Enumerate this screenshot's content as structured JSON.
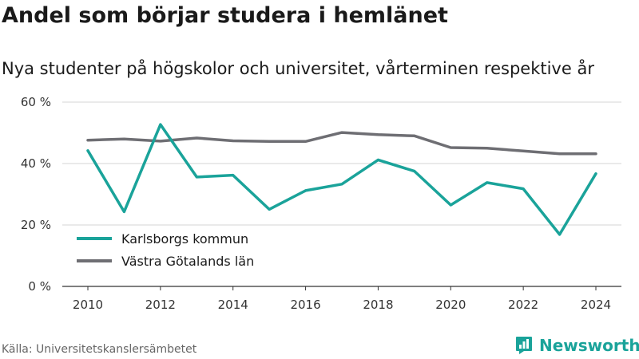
{
  "title": "Andel som börjar studera i hemlänet",
  "subtitle": "Nya studenter på högskolor och universitet, vårterminen respektive år",
  "source": "Källa: Universitetskanslersämbetet",
  "brand": {
    "name": "Newsworthy",
    "icon": "newsworthy-logo-icon",
    "color": "#1aa39a"
  },
  "chart_data": {
    "type": "line",
    "x": [
      2010,
      2011,
      2012,
      2013,
      2014,
      2015,
      2016,
      2017,
      2018,
      2019,
      2020,
      2021,
      2022,
      2023,
      2024
    ],
    "series": [
      {
        "name": "Karlsborgs kommun",
        "color": "#1aa39a",
        "values": [
          44.2,
          24.3,
          52.7,
          35.6,
          36.2,
          25.1,
          31.2,
          33.3,
          41.2,
          37.5,
          26.5,
          33.8,
          31.8,
          16.9,
          36.7
        ]
      },
      {
        "name": "Västra Götalands län",
        "color": "#6e6e73",
        "values": [
          47.6,
          48.0,
          47.3,
          48.3,
          47.4,
          47.2,
          47.2,
          50.1,
          49.4,
          49.0,
          45.2,
          45.0,
          44.1,
          43.2,
          43.2
        ]
      }
    ],
    "xticks": [
      "2010",
      "2012",
      "2014",
      "2016",
      "2018",
      "2020",
      "2022",
      "2024"
    ],
    "yticks": [
      "0 %",
      "20 %",
      "40 %",
      "60 %"
    ],
    "ylim": [
      0,
      60
    ],
    "xlim": [
      2010,
      2024
    ],
    "grid": true,
    "legend": "bottom-left"
  }
}
